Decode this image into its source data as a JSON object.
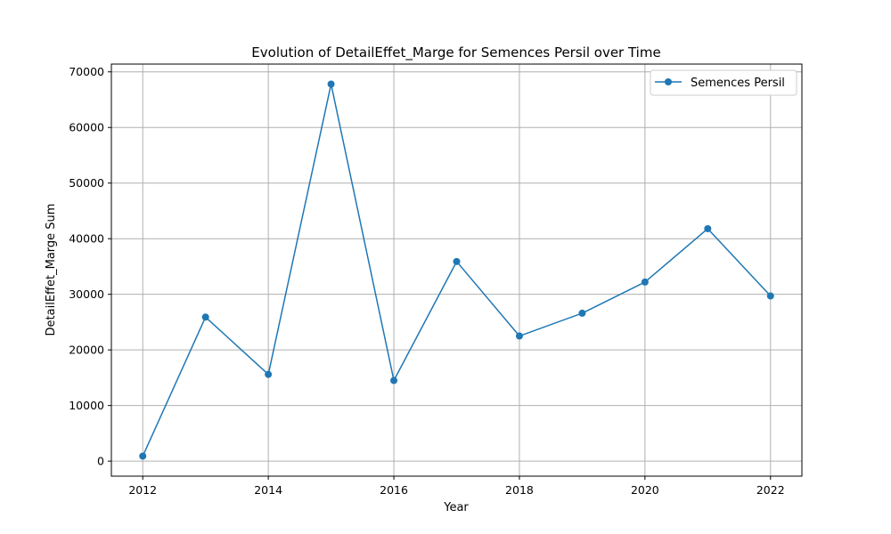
{
  "chart_data": {
    "type": "line",
    "title": "Evolution of DetailEffet_Marge for Semences Persil over Time",
    "xlabel": "Year",
    "ylabel": "DetailEffet_Marge Sum",
    "x": [
      2012,
      2013,
      2014,
      2015,
      2016,
      2017,
      2018,
      2019,
      2020,
      2021,
      2022
    ],
    "series": [
      {
        "name": "Semences Persil",
        "values": [
          900,
          25900,
          15600,
          67800,
          14500,
          35900,
          22500,
          26600,
          32200,
          41800,
          29700
        ],
        "color": "#1f77b4",
        "marker": "circle"
      }
    ],
    "xlim": [
      2011.5,
      2022.5
    ],
    "ylim": [
      -2700,
      71400
    ],
    "xticks": [
      2012,
      2014,
      2016,
      2018,
      2020,
      2022
    ],
    "yticks": [
      0,
      10000,
      20000,
      30000,
      40000,
      50000,
      60000,
      70000
    ],
    "grid": true,
    "legend_position": "top-right"
  }
}
